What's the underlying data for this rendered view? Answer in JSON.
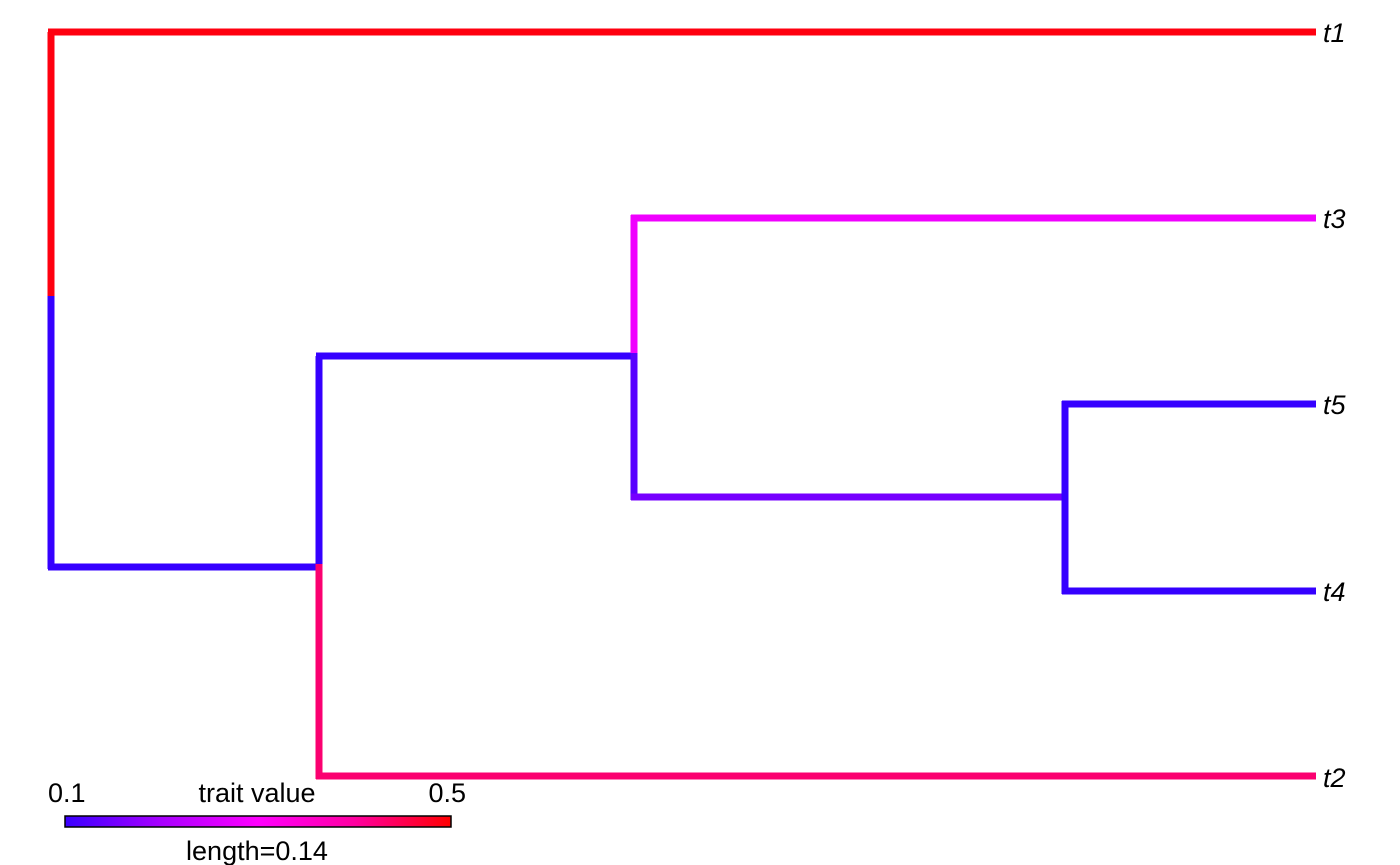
{
  "tree": {
    "tips": [
      {
        "label": "t1"
      },
      {
        "label": "t3"
      },
      {
        "label": "t5"
      },
      {
        "label": "t4"
      },
      {
        "label": "t2"
      }
    ],
    "colors": {
      "red": "#ff0010",
      "magenta": "#f000ff",
      "blue": "#3500ff",
      "blue_violet": "#5800ff",
      "violet": "#7600ff",
      "pink_red": "#fb0070"
    }
  },
  "legend": {
    "min_label": "0.1",
    "max_label": "0.5",
    "title": "trait value",
    "length_label": "length=0.14",
    "gradient": [
      "#3a00ff",
      "#a800ff",
      "#ff00ff",
      "#ff00a0",
      "#ff0000"
    ]
  }
}
